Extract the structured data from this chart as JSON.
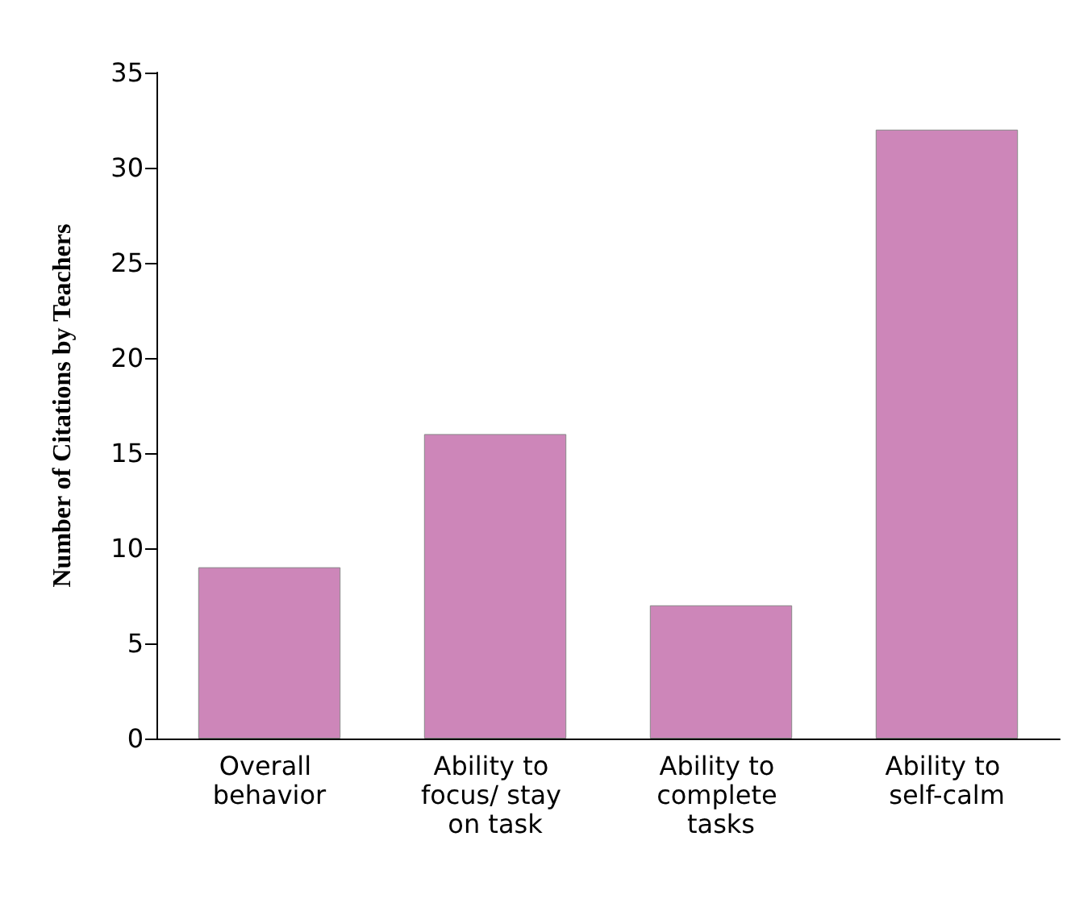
{
  "chart_data": {
    "type": "bar",
    "ylabel": "Number of Citations by Teachers",
    "categories": [
      "Overall behavior",
      "Ability to focus/ stay on task",
      "Ability to complete tasks",
      "Ability to self-calm"
    ],
    "values": [
      9,
      16,
      7,
      32
    ],
    "color": "#cd86b9",
    "ylim": [
      0,
      35
    ],
    "yticks": [
      0,
      5,
      10,
      15,
      20,
      25,
      30,
      35
    ],
    "grid": false
  }
}
